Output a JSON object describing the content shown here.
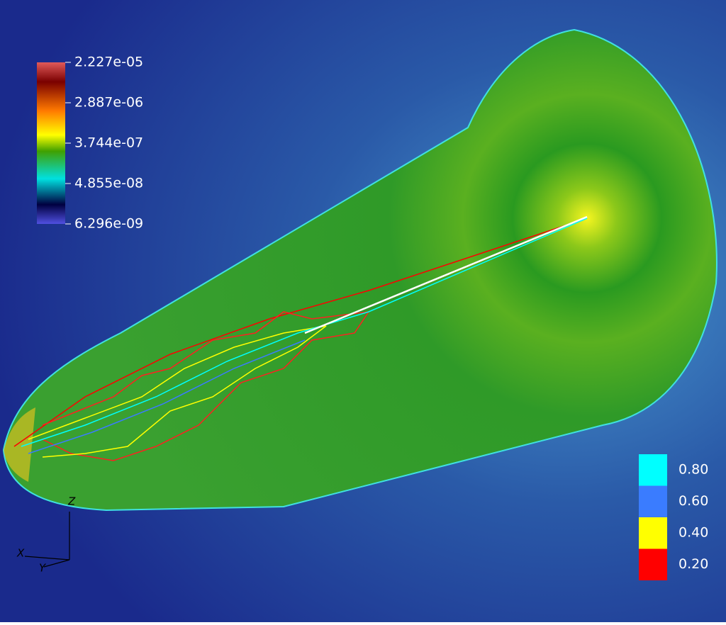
{
  "colorbar": {
    "labels": [
      "2.227e-05",
      "2.887e-06",
      "3.744e-07",
      "4.855e-08",
      "6.296e-09"
    ]
  },
  "contour_legend": {
    "levels": [
      {
        "label": "0.80",
        "color": "#00ffff"
      },
      {
        "label": "0.60",
        "color": "#3a7cff"
      },
      {
        "label": "0.40",
        "color": "#ffff00"
      },
      {
        "label": "0.20",
        "color": "#ff0000"
      }
    ]
  },
  "axes_glyph": {
    "z": "Z",
    "x": "X",
    "y": "Y"
  }
}
